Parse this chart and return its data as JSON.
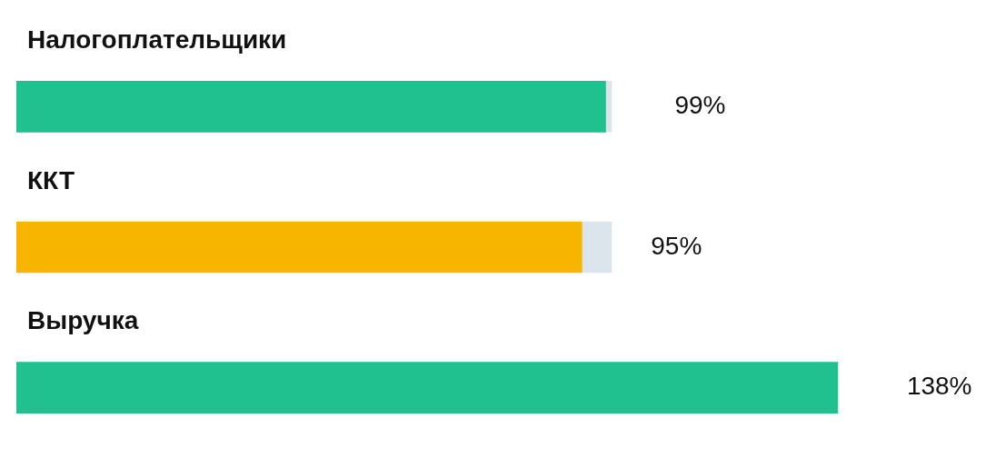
{
  "chart_data": {
    "type": "bar",
    "orientation": "horizontal",
    "stacked": true,
    "categories": [
      "Налогоплательщики",
      "ККТ",
      "Выручка"
    ],
    "series": [
      {
        "colors": [
          "#20c08f",
          "#f7b500",
          "#20c08f"
        ],
        "values": [
          99,
          95,
          138
        ],
        "value_labels": [
          "99%",
          "95%",
          "138%"
        ]
      },
      {
        "color": "#dde5ec",
        "values": [
          1,
          5,
          null
        ]
      }
    ],
    "legend": false
  }
}
